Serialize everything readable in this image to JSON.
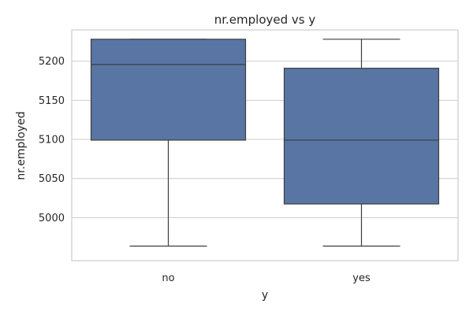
{
  "chart_data": {
    "type": "box",
    "title": "nr.employed vs y",
    "xlabel": "y",
    "ylabel": "nr.employed",
    "categories": [
      "no",
      "yes"
    ],
    "boxes": [
      {
        "category": "no",
        "min": 4963.6,
        "q1": 5099.1,
        "median": 5195.8,
        "q3": 5228.1,
        "max": 5228.1
      },
      {
        "category": "yes",
        "min": 4963.6,
        "q1": 5017.5,
        "median": 5099.1,
        "q3": 5191.0,
        "max": 5228.1
      }
    ],
    "yticks": [
      5000,
      5050,
      5100,
      5150,
      5200
    ],
    "ylim": [
      4945,
      5240
    ],
    "grid": true,
    "box_color": "#5975a4",
    "edge_color": "#3d3d3d"
  }
}
